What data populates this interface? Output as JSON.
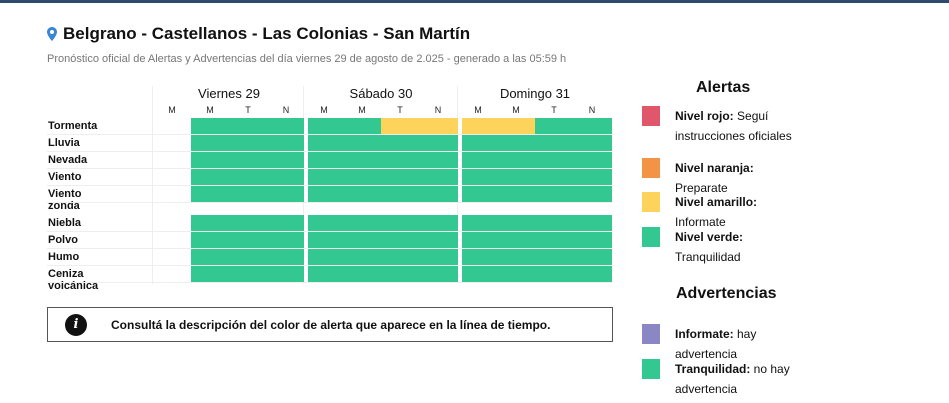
{
  "header": {
    "title": "Belgrano - Castellanos - Las Colonias - San Martín",
    "subtitle": "Pronóstico oficial de Alertas y Advertencias del día viernes 29 de agosto de 2.025 - generado a las 05:59 h"
  },
  "colors": {
    "verde": "#33c792",
    "amarillo": "#fdd35b",
    "naranja": "#f39345",
    "rojo": "#e0566a",
    "violeta": "#8b87c5",
    "vacio": "#ffffff"
  },
  "days": [
    {
      "label": "Viernes 29",
      "periods": [
        "M",
        "M",
        "T",
        "N"
      ]
    },
    {
      "label": "Sábado 30",
      "periods": [
        "M",
        "M",
        "T",
        "N"
      ]
    },
    {
      "label": "Domingo 31",
      "periods": [
        "M",
        "M",
        "T",
        "N"
      ]
    }
  ],
  "rows": [
    {
      "label": "Tormenta",
      "cells": [
        "vacio",
        "verde",
        "verde",
        "verde",
        "verde",
        "verde",
        "amarillo",
        "amarillo",
        "amarillo",
        "amarillo",
        "verde",
        "verde"
      ]
    },
    {
      "label": "Lluvia",
      "cells": [
        "vacio",
        "verde",
        "verde",
        "verde",
        "verde",
        "verde",
        "verde",
        "verde",
        "verde",
        "verde",
        "verde",
        "verde"
      ]
    },
    {
      "label": "Nevada",
      "cells": [
        "vacio",
        "verde",
        "verde",
        "verde",
        "verde",
        "verde",
        "verde",
        "verde",
        "verde",
        "verde",
        "verde",
        "verde"
      ]
    },
    {
      "label": "Viento",
      "cells": [
        "vacio",
        "verde",
        "verde",
        "verde",
        "verde",
        "verde",
        "verde",
        "verde",
        "verde",
        "verde",
        "verde",
        "verde"
      ]
    },
    {
      "label": "Viento zonda",
      "cells": [
        "vacio",
        "verde",
        "verde",
        "verde",
        "verde",
        "verde",
        "verde",
        "verde",
        "verde",
        "verde",
        "verde",
        "verde"
      ]
    },
    {
      "label": "Niebla",
      "cells": [
        "vacio",
        "verde",
        "verde",
        "verde",
        "verde",
        "verde",
        "verde",
        "verde",
        "verde",
        "verde",
        "verde",
        "verde"
      ]
    },
    {
      "label": "Polvo",
      "cells": [
        "vacio",
        "verde",
        "verde",
        "verde",
        "verde",
        "verde",
        "verde",
        "verde",
        "verde",
        "verde",
        "verde",
        "verde"
      ]
    },
    {
      "label": "Humo",
      "cells": [
        "vacio",
        "verde",
        "verde",
        "verde",
        "verde",
        "verde",
        "verde",
        "verde",
        "verde",
        "verde",
        "verde",
        "verde"
      ]
    },
    {
      "label": "Ceniza volcánica",
      "cells": [
        "vacio",
        "verde",
        "verde",
        "verde",
        "verde",
        "verde",
        "verde",
        "verde",
        "verde",
        "verde",
        "verde",
        "verde"
      ]
    }
  ],
  "info": {
    "text": "Consultá la descripción del color de alerta que aparece en la línea de tiempo."
  },
  "legend": {
    "alertas_title": "Alertas",
    "alertas": [
      {
        "color": "rojo",
        "bold": "Nivel rojo:",
        "text": " Seguí instrucciones oficiales"
      },
      {
        "color": "naranja",
        "bold": "Nivel naranja:",
        "text": " Preparate"
      },
      {
        "color": "amarillo",
        "bold": "Nivel amarillo:",
        "text": " Informate"
      },
      {
        "color": "verde",
        "bold": "Nivel verde:",
        "text": " Tranquilidad"
      }
    ],
    "advertencias_title": "Advertencias",
    "advertencias": [
      {
        "color": "violeta",
        "bold": "Informate:",
        "text": " hay advertencia"
      },
      {
        "color": "verde",
        "bold": "Tranquilidad:",
        "text": " no hay advertencia"
      }
    ]
  }
}
